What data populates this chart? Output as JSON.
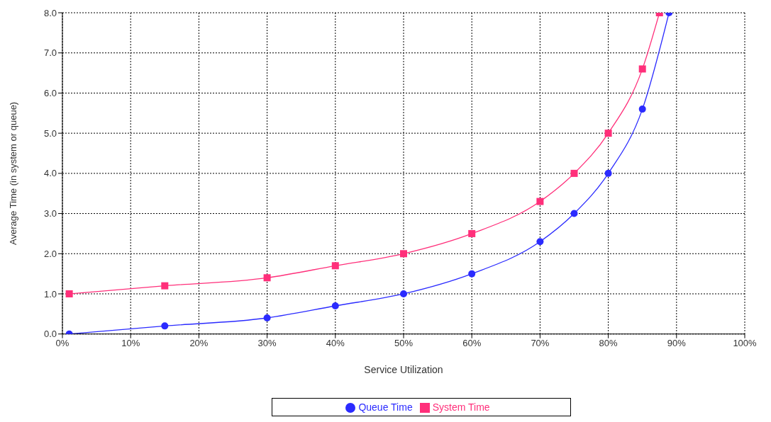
{
  "chart_data": {
    "type": "line",
    "xlabel": "Service Utilization",
    "ylabel": "Average Time  (in system or queue)",
    "xlim": [
      0,
      100
    ],
    "ylim": [
      0,
      8
    ],
    "xticks": [
      {
        "value": 0,
        "label": "0%"
      },
      {
        "value": 10,
        "label": "10%"
      },
      {
        "value": 20,
        "label": "20%"
      },
      {
        "value": 30,
        "label": "30%"
      },
      {
        "value": 40,
        "label": "40%"
      },
      {
        "value": 50,
        "label": "50%"
      },
      {
        "value": 60,
        "label": "60%"
      },
      {
        "value": 70,
        "label": "70%"
      },
      {
        "value": 80,
        "label": "80%"
      },
      {
        "value": 90,
        "label": "90%"
      },
      {
        "value": 100,
        "label": "100%"
      }
    ],
    "yticks": [
      {
        "value": 0,
        "label": "0.0"
      },
      {
        "value": 1,
        "label": "1.0"
      },
      {
        "value": 2,
        "label": "2.0"
      },
      {
        "value": 3,
        "label": "3.0"
      },
      {
        "value": 4,
        "label": "4.0"
      },
      {
        "value": 5,
        "label": "5.0"
      },
      {
        "value": 6,
        "label": "6.0"
      },
      {
        "value": 7,
        "label": "7.0"
      },
      {
        "value": 8,
        "label": "8.0"
      }
    ],
    "grid": true,
    "legend": "bottom",
    "line_style": "solid",
    "series": [
      {
        "name": "Queue Time",
        "color": "#2b2bff",
        "marker": "circle",
        "x": [
          1,
          15,
          30,
          40,
          50,
          60,
          70,
          75,
          80,
          85,
          88.9
        ],
        "values": [
          0.0,
          0.2,
          0.4,
          0.7,
          1.0,
          1.5,
          2.3,
          3.0,
          4.0,
          5.6,
          8.0
        ]
      },
      {
        "name": "System Time",
        "color": "#ff2f7a",
        "marker": "square",
        "x": [
          1,
          15,
          30,
          40,
          50,
          60,
          70,
          75,
          80,
          85,
          87.5
        ],
        "values": [
          1.0,
          1.2,
          1.4,
          1.7,
          2.0,
          2.5,
          3.3,
          4.0,
          5.0,
          6.6,
          8.0
        ]
      }
    ]
  }
}
